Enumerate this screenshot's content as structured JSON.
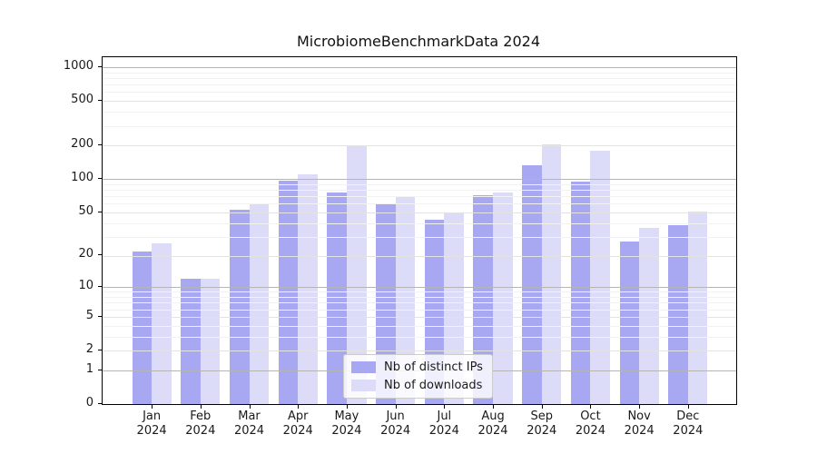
{
  "chart_data": {
    "type": "bar",
    "title": "MicrobiomeBenchmarkData 2024",
    "year_label": "2024",
    "categories": [
      "Jan",
      "Feb",
      "Mar",
      "Apr",
      "May",
      "Jun",
      "Jul",
      "Aug",
      "Sep",
      "Oct",
      "Nov",
      "Dec"
    ],
    "series": [
      {
        "name": "Nb of distinct IPs",
        "color": "#a7a7f2",
        "values": [
          22,
          12,
          53,
          96,
          75,
          59,
          43,
          71,
          132,
          95,
          27,
          38
        ]
      },
      {
        "name": "Nb of downloads",
        "color": "#dcdcf8",
        "values": [
          26,
          12,
          60,
          110,
          200,
          70,
          50,
          76,
          205,
          180,
          36,
          51
        ]
      }
    ],
    "y_scale": "log1p",
    "y_ticks": [
      0,
      1,
      2,
      5,
      10,
      20,
      50,
      100,
      200,
      500,
      1000
    ],
    "ylim": [
      0,
      1100
    ],
    "xlabel": "",
    "ylabel": "",
    "grid": true,
    "legend_position": "bottom-center"
  },
  "colors": {
    "decade_gridline": "#b5b5b5",
    "labeled_gridline": "#e3e3e3",
    "minor_gridline": "#f2f2f2",
    "axis": "#000000",
    "text": "#1a1a1a",
    "legend_border": "#cccccc"
  }
}
